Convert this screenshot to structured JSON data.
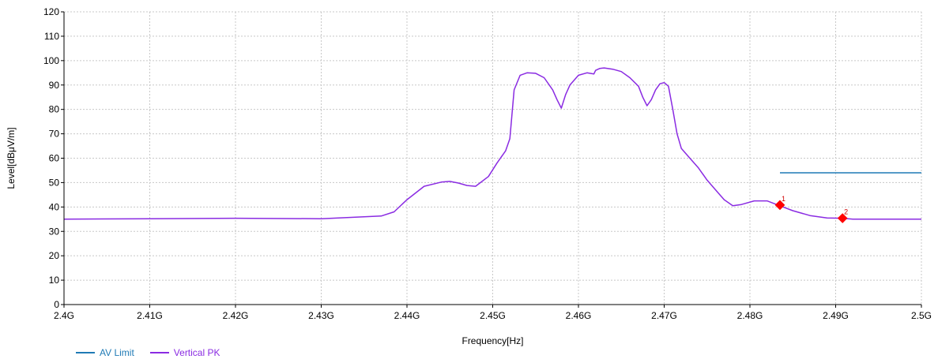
{
  "chart_data": {
    "type": "line",
    "title": "",
    "xlabel": "Frequency[Hz]",
    "ylabel": "Level[dBμV/m]",
    "xlim": [
      2.4,
      2.5
    ],
    "ylim": [
      0,
      120
    ],
    "x_ticks": [
      "2.4G",
      "2.41G",
      "2.42G",
      "2.43G",
      "2.44G",
      "2.45G",
      "2.46G",
      "2.47G",
      "2.48G",
      "2.49G",
      "2.5G"
    ],
    "y_ticks": [
      0,
      10,
      20,
      30,
      40,
      50,
      60,
      70,
      80,
      90,
      100,
      110,
      120
    ],
    "grid": true,
    "legend_position": "bottom-left",
    "series": [
      {
        "name": "AV Limit",
        "color": "#1f7ab5",
        "x": [
          2.4835,
          2.5
        ],
        "y": [
          54,
          54
        ]
      },
      {
        "name": "Vertical PK",
        "color": "#8a2be2",
        "x": [
          2.4,
          2.41,
          2.42,
          2.43,
          2.434,
          2.437,
          2.4385,
          2.44,
          2.442,
          2.444,
          2.445,
          2.446,
          2.447,
          2.448,
          2.4495,
          2.4505,
          2.4515,
          2.452,
          2.4525,
          2.4532,
          2.454,
          2.455,
          2.456,
          2.457,
          2.4575,
          2.458,
          2.4585,
          2.459,
          2.46,
          2.461,
          2.4618,
          2.462,
          2.4625,
          2.463,
          2.464,
          2.465,
          2.466,
          2.467,
          2.4675,
          2.468,
          2.4685,
          2.469,
          2.4695,
          2.47,
          2.4705,
          2.471,
          2.4715,
          2.472,
          2.473,
          2.474,
          2.475,
          2.476,
          2.477,
          2.478,
          2.479,
          2.4805,
          2.482,
          2.4835,
          2.485,
          2.487,
          2.489,
          2.4908,
          2.492,
          2.495,
          2.5
        ],
        "y": [
          35,
          35.2,
          35.4,
          35.2,
          35.8,
          36.3,
          38,
          43,
          48.5,
          50.2,
          50.5,
          49.8,
          48.8,
          48.5,
          52.5,
          58,
          63,
          68,
          88,
          94,
          95,
          94.8,
          93,
          88,
          84,
          80.5,
          86,
          90,
          94,
          95,
          94.5,
          96,
          96.8,
          97,
          96.5,
          95.5,
          93,
          89.5,
          85,
          81.5,
          84,
          88,
          90.5,
          91,
          89.5,
          80,
          70,
          64,
          60,
          56,
          51,
          47,
          43,
          40.5,
          41,
          42.5,
          42.5,
          40.5,
          38.5,
          36.5,
          35.5,
          35.4,
          35,
          35,
          35
        ]
      }
    ],
    "markers": [
      {
        "label": "1",
        "x": 2.4835,
        "y": 40.8
      },
      {
        "label": "2",
        "x": 2.4908,
        "y": 35.4
      }
    ]
  }
}
